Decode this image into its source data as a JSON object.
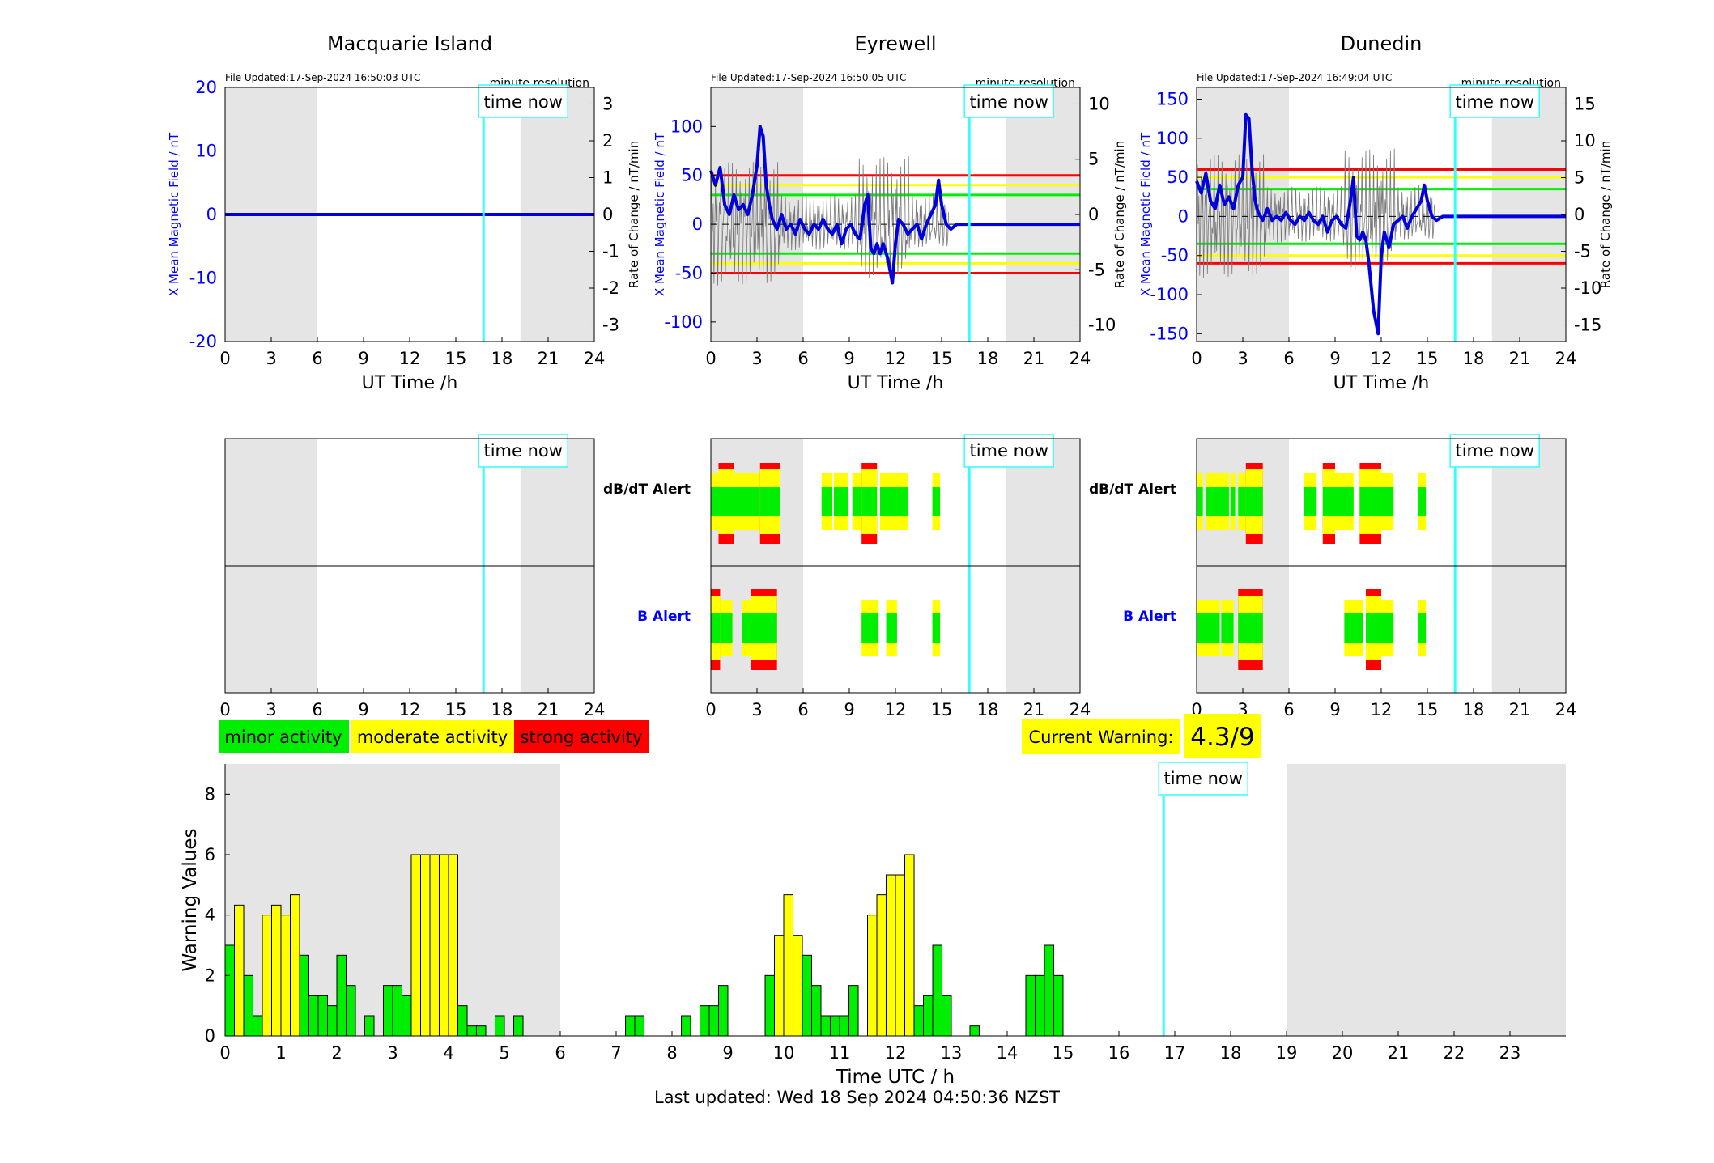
{
  "colors": {
    "minor": "#00ee00",
    "moderate": "#ffff00",
    "strong": "#ff0000",
    "now": "#33ffff",
    "night": "#e5e5e5",
    "axis_blue": "#0000ff",
    "trace": "#0000dd"
  },
  "stations": [
    {
      "name": "Macquarie Island",
      "file_updated": "File Updated:17-Sep-2024 16:50:03 UTC",
      "resolution": "minute resolution",
      "ylabel": "X Mean Magnetic Field / nT",
      "ylabel_right": "Rate of Change / nT/min",
      "yticks": [
        "20",
        "10",
        "0",
        "-10",
        "-20"
      ],
      "yticks_right": [
        "3",
        "2",
        "1",
        "0",
        "-1",
        "-2",
        "-3"
      ]
    },
    {
      "name": "Eyrewell",
      "file_updated": "File Updated:17-Sep-2024 16:50:05 UTC",
      "resolution": "minute resolution",
      "ylabel": "X Mean Magnetic Field / nT",
      "ylabel_right": "Rate of Change / nT/min",
      "yticks": [
        "100",
        "50",
        "0",
        "-50",
        "-100"
      ],
      "yticks_right": [
        "10",
        "5",
        "0",
        "-5",
        "-10"
      ]
    },
    {
      "name": "Dunedin",
      "file_updated": "File Updated:17-Sep-2024 16:49:04 UTC",
      "resolution": "minute resolution",
      "ylabel": "X Mean Magnetic Field / nT",
      "ylabel_right": "Rate of Change / nT/min",
      "yticks": [
        "150",
        "100",
        "50",
        "0",
        "-50",
        "-100",
        "-150"
      ],
      "yticks_right": [
        "15",
        "10",
        "5",
        "0",
        "-5",
        "-10",
        "-15"
      ]
    }
  ],
  "ut_ticks": [
    "0",
    "3",
    "6",
    "9",
    "12",
    "15",
    "18",
    "21",
    "24"
  ],
  "ut_xlabel": "UT Time /h",
  "time_now_label": "time now",
  "alert_labels": {
    "dbdt": "dB/dT Alert",
    "b": "B Alert"
  },
  "legend": {
    "minor": "minor activity",
    "moderate": "moderate activity",
    "strong": "strong activity"
  },
  "current_warning": {
    "label": "Current Warning:",
    "value": "4.3/9"
  },
  "bottom": {
    "xlabel": "Time UTC / h",
    "ylabel": "Warning Values",
    "xticks": [
      "0",
      "1",
      "2",
      "3",
      "4",
      "5",
      "6",
      "7",
      "8",
      "9",
      "10",
      "11",
      "12",
      "13",
      "14",
      "15",
      "16",
      "17",
      "18",
      "19",
      "20",
      "21",
      "22",
      "23"
    ],
    "yticks": [
      "0",
      "2",
      "4",
      "6",
      "8"
    ]
  },
  "last_updated": "Last updated: Wed 18 Sep 2024 04:50:36 NZST",
  "chart_data": [
    {
      "type": "line",
      "title": "Macquarie Island",
      "xlabel": "UT Time /h",
      "ylabel": "X Mean Magnetic Field / nT",
      "xlim": [
        0,
        24
      ],
      "ylim": [
        -20,
        20
      ],
      "time_now": 16.8,
      "night": [
        [
          0,
          6
        ],
        [
          19.2,
          24
        ]
      ],
      "series": [
        {
          "x": [
            0,
            24
          ],
          "values": [
            0,
            0
          ]
        }
      ]
    },
    {
      "type": "line",
      "title": "Eyrewell",
      "xlabel": "UT Time /h",
      "ylabel": "X Mean Magnetic Field / nT",
      "xlim": [
        0,
        24
      ],
      "ylim": [
        -120,
        140
      ],
      "time_now": 16.8,
      "night": [
        [
          0,
          6
        ],
        [
          19.2,
          24
        ]
      ],
      "thresholds": {
        "minor": 30,
        "moderate": 40,
        "strong": 50
      },
      "series": [
        {
          "x": [
            0,
            0.3,
            0.6,
            0.9,
            1.2,
            1.5,
            1.8,
            2.1,
            2.4,
            2.7,
            3.0,
            3.2,
            3.4,
            3.6,
            3.8,
            4.0,
            4.3,
            4.6,
            4.9,
            5.2,
            5.5,
            5.8,
            6.1,
            6.4,
            6.7,
            7.0,
            7.3,
            7.6,
            7.9,
            8.2,
            8.5,
            8.8,
            9.1,
            9.4,
            9.7,
            10.0,
            10.2,
            10.4,
            10.6,
            10.8,
            11.0,
            11.2,
            11.5,
            11.8,
            12.0,
            12.2,
            12.5,
            12.8,
            13.1,
            13.4,
            13.7,
            14.0,
            14.3,
            14.6,
            14.8,
            15.0,
            15.3,
            15.6,
            16.0,
            16.8,
            24
          ],
          "values": [
            55,
            40,
            58,
            20,
            10,
            30,
            15,
            20,
            10,
            30,
            60,
            100,
            90,
            40,
            20,
            5,
            -5,
            10,
            -5,
            0,
            -10,
            5,
            -5,
            -10,
            0,
            -5,
            5,
            -5,
            -10,
            0,
            -20,
            -5,
            0,
            -10,
            -15,
            20,
            30,
            -25,
            -30,
            -20,
            -30,
            -20,
            -35,
            -60,
            -20,
            5,
            0,
            -10,
            -5,
            0,
            -15,
            0,
            10,
            20,
            45,
            20,
            0,
            -5,
            0,
            0,
            0
          ]
        },
        {
          "name": "rate",
          "x": [
            0,
            24
          ],
          "values": [
            0,
            0
          ]
        }
      ]
    },
    {
      "type": "line",
      "title": "Dunedin",
      "xlabel": "UT Time /h",
      "ylabel": "X Mean Magnetic Field / nT",
      "xlim": [
        0,
        24
      ],
      "ylim": [
        -160,
        165
      ],
      "time_now": 16.8,
      "night": [
        [
          0,
          6
        ],
        [
          19.2,
          24
        ]
      ],
      "thresholds": {
        "minor": 35,
        "moderate": 50,
        "strong": 60
      },
      "series": [
        {
          "x": [
            0,
            0.3,
            0.6,
            0.9,
            1.2,
            1.5,
            1.8,
            2.1,
            2.4,
            2.7,
            3.0,
            3.2,
            3.4,
            3.6,
            3.8,
            4.0,
            4.3,
            4.6,
            4.9,
            5.2,
            5.5,
            5.8,
            6.1,
            6.4,
            6.7,
            7.0,
            7.3,
            7.6,
            7.9,
            8.2,
            8.5,
            8.8,
            9.1,
            9.4,
            9.7,
            10.0,
            10.2,
            10.4,
            10.6,
            10.8,
            11.0,
            11.2,
            11.5,
            11.8,
            12.0,
            12.2,
            12.5,
            12.8,
            13.1,
            13.4,
            13.7,
            14.0,
            14.3,
            14.6,
            14.8,
            15.0,
            15.3,
            15.6,
            16.0,
            16.8,
            24
          ],
          "values": [
            45,
            30,
            55,
            20,
            10,
            40,
            15,
            25,
            10,
            40,
            50,
            130,
            125,
            60,
            20,
            5,
            -5,
            10,
            -5,
            0,
            -5,
            5,
            -5,
            -10,
            0,
            -5,
            5,
            -5,
            -10,
            0,
            -20,
            -5,
            0,
            -10,
            -15,
            20,
            50,
            -25,
            -30,
            -20,
            -30,
            -60,
            -120,
            -150,
            -50,
            -20,
            -40,
            -10,
            -5,
            0,
            -15,
            0,
            10,
            20,
            40,
            20,
            0,
            -5,
            0,
            0,
            0
          ]
        },
        {
          "name": "rate",
          "x": [
            0,
            24
          ],
          "values": [
            0,
            0
          ]
        }
      ]
    },
    {
      "type": "bar",
      "title": "",
      "xlabel": "Time UTC / h",
      "ylabel": "Warning Values",
      "xlim": [
        0,
        24
      ],
      "ylim": [
        0,
        9
      ],
      "time_now": 16.8,
      "night": [
        [
          0,
          6
        ],
        [
          19,
          24
        ]
      ],
      "x": [
        0,
        0.167,
        0.333,
        0.5,
        0.667,
        0.833,
        1.0,
        1.167,
        1.333,
        1.5,
        1.667,
        1.833,
        2.0,
        2.167,
        2.5,
        2.833,
        3.0,
        3.167,
        3.333,
        3.5,
        3.667,
        3.833,
        4.0,
        4.167,
        4.333,
        4.5,
        4.833,
        5.167,
        7.167,
        7.333,
        8.167,
        8.5,
        8.667,
        8.833,
        9.667,
        9.833,
        10.0,
        10.167,
        10.333,
        10.5,
        10.667,
        10.833,
        11.0,
        11.167,
        11.5,
        11.667,
        11.833,
        12.0,
        12.167,
        12.333,
        12.5,
        12.667,
        12.833,
        13.333,
        14.333,
        14.5,
        14.667,
        14.833
      ],
      "values": [
        3,
        4.33,
        2,
        0.67,
        4,
        4.33,
        4,
        4.67,
        2.67,
        1.33,
        1.33,
        1,
        2.67,
        1.67,
        0.67,
        1.67,
        1.67,
        1.33,
        6,
        6,
        6,
        6,
        6,
        1,
        0.33,
        0.33,
        0.67,
        0.67,
        0.67,
        0.67,
        0.67,
        1,
        1,
        1.67,
        2,
        3.33,
        4.67,
        3.33,
        2.67,
        1.67,
        0.67,
        0.67,
        0.67,
        1.67,
        4,
        4.67,
        5.33,
        5.33,
        6,
        1,
        1.33,
        3,
        1.33,
        0.33,
        2,
        2,
        3,
        2
      ],
      "levels": [
        "minor",
        "moderate",
        "minor",
        "minor",
        "moderate",
        "moderate",
        "moderate",
        "moderate",
        "minor",
        "minor",
        "minor",
        "minor",
        "minor",
        "minor",
        "minor",
        "minor",
        "minor",
        "minor",
        "moderate",
        "moderate",
        "moderate",
        "moderate",
        "moderate",
        "minor",
        "minor",
        "minor",
        "minor",
        "minor",
        "minor",
        "minor",
        "minor",
        "minor",
        "minor",
        "minor",
        "minor",
        "moderate",
        "moderate",
        "moderate",
        "minor",
        "minor",
        "minor",
        "minor",
        "minor",
        "minor",
        "moderate",
        "moderate",
        "moderate",
        "moderate",
        "moderate",
        "minor",
        "minor",
        "minor",
        "minor",
        "minor",
        "minor",
        "minor",
        "minor",
        "minor"
      ]
    }
  ],
  "alerts": {
    "eyrewell": {
      "dbdt": [
        [
          0,
          0.5,
          "m"
        ],
        [
          0.5,
          1.5,
          "s"
        ],
        [
          1.5,
          2.5,
          "m"
        ],
        [
          2.5,
          3.2,
          "m"
        ],
        [
          3.2,
          4.5,
          "s"
        ],
        [
          7.2,
          7.9,
          "m"
        ],
        [
          8.0,
          8.9,
          "m"
        ],
        [
          9.2,
          9.8,
          "m"
        ],
        [
          9.8,
          10.8,
          "s"
        ],
        [
          11.0,
          12.0,
          "m"
        ],
        [
          12.0,
          12.8,
          "m"
        ],
        [
          14.4,
          14.9,
          "m"
        ]
      ],
      "b": [
        [
          0,
          0.6,
          "s"
        ],
        [
          0.6,
          1.4,
          "m"
        ],
        [
          2.0,
          2.6,
          "m"
        ],
        [
          2.6,
          4.3,
          "s"
        ],
        [
          9.8,
          10.9,
          "m"
        ],
        [
          11.4,
          12.1,
          "m"
        ],
        [
          14.4,
          14.9,
          "m"
        ]
      ]
    },
    "dunedin": {
      "dbdt": [
        [
          0,
          0.4,
          "m"
        ],
        [
          0.6,
          2.1,
          "m"
        ],
        [
          2.2,
          2.5,
          "m"
        ],
        [
          2.7,
          3.6,
          "m"
        ],
        [
          3.2,
          4.3,
          "s"
        ],
        [
          7.0,
          7.8,
          "m"
        ],
        [
          8.2,
          9.0,
          "s"
        ],
        [
          9.0,
          10.2,
          "m"
        ],
        [
          10.6,
          12.0,
          "s"
        ],
        [
          12.0,
          12.8,
          "m"
        ],
        [
          14.4,
          14.9,
          "m"
        ]
      ],
      "b": [
        [
          0,
          1.2,
          "m"
        ],
        [
          0.6,
          1.5,
          "m"
        ],
        [
          1.6,
          2.4,
          "m"
        ],
        [
          2.7,
          4.3,
          "s"
        ],
        [
          9.6,
          10.8,
          "m"
        ],
        [
          11.0,
          12.0,
          "s"
        ],
        [
          12.0,
          12.8,
          "m"
        ],
        [
          14.4,
          14.9,
          "m"
        ]
      ]
    }
  }
}
